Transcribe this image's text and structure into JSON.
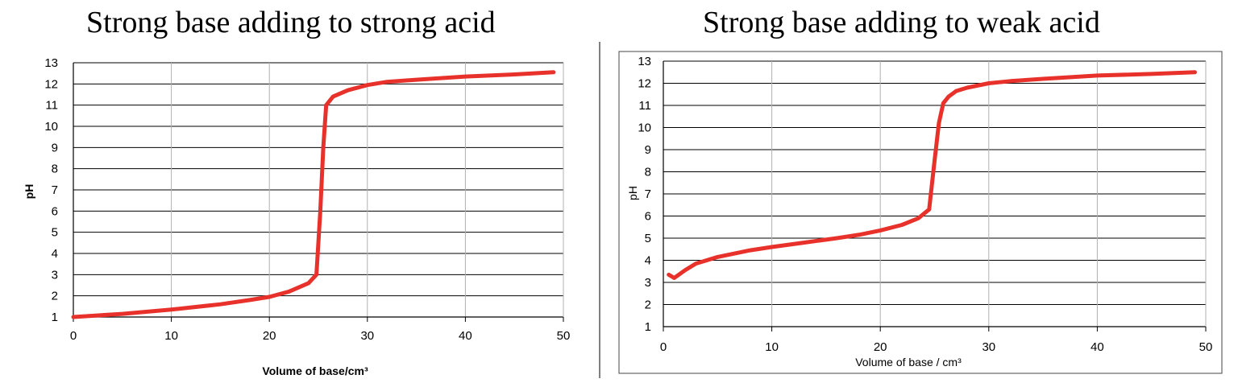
{
  "chart_data": [
    {
      "type": "line",
      "title": "Strong base adding to strong acid",
      "xlabel": "Volume of base/cm³",
      "ylabel": "pH",
      "xlim": [
        0,
        50
      ],
      "ylim": [
        1,
        13
      ],
      "x_ticks": [
        0,
        10,
        20,
        30,
        40,
        50
      ],
      "y_ticks": [
        1,
        2,
        3,
        4,
        5,
        6,
        7,
        8,
        9,
        10,
        11,
        12,
        13
      ],
      "grid": true,
      "line_color": "#e8312a",
      "series": [
        {
          "x": [
            0,
            5,
            10,
            15,
            18,
            20,
            22,
            24,
            24.8,
            25.2,
            25.5,
            25.8,
            26.5,
            28,
            30,
            32,
            35,
            40,
            45,
            49
          ],
          "values": [
            1.0,
            1.15,
            1.35,
            1.6,
            1.8,
            1.95,
            2.2,
            2.6,
            3.0,
            6.0,
            9.0,
            11.0,
            11.4,
            11.7,
            11.95,
            12.1,
            12.2,
            12.35,
            12.45,
            12.55
          ]
        }
      ]
    },
    {
      "type": "line",
      "title": "Strong base adding to weak acid",
      "xlabel": "Volume of base / cm³",
      "ylabel": "pH",
      "xlim": [
        0,
        50
      ],
      "ylim": [
        1,
        13
      ],
      "x_ticks": [
        0,
        10,
        20,
        30,
        40,
        50
      ],
      "y_ticks": [
        1,
        2,
        3,
        4,
        5,
        6,
        7,
        8,
        9,
        10,
        11,
        12,
        13
      ],
      "grid": true,
      "line_color": "#e8312a",
      "series": [
        {
          "x": [
            0.5,
            1,
            2,
            3,
            5,
            8,
            10,
            13,
            16,
            18,
            20,
            22,
            23.5,
            24.5,
            25,
            25.4,
            25.8,
            26.3,
            27,
            28,
            30,
            32,
            35,
            40,
            45,
            49
          ],
          "values": [
            3.35,
            3.2,
            3.55,
            3.85,
            4.15,
            4.45,
            4.6,
            4.8,
            5.0,
            5.15,
            5.35,
            5.6,
            5.9,
            6.3,
            8.5,
            10.2,
            11.1,
            11.4,
            11.65,
            11.8,
            12.0,
            12.1,
            12.2,
            12.35,
            12.42,
            12.5
          ]
        }
      ]
    }
  ]
}
